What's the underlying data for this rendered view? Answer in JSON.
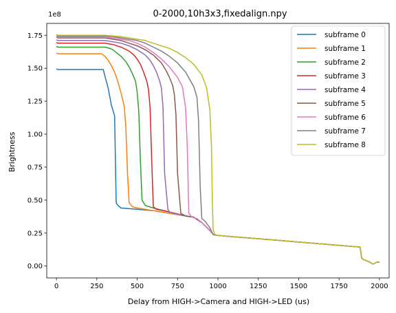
{
  "chart_data": {
    "type": "line",
    "title": "0-2000,10h3x3,fixedalign.npy",
    "xlabel": "Delay from HIGH->Camera and HIGH->LED (us)",
    "ylabel": "Brightness",
    "y_offset_label": "1e8",
    "xlim": [
      -60,
      2060
    ],
    "ylim": [
      -0.09,
      1.84
    ],
    "y_scale": 100000000.0,
    "x_ticks": [
      0,
      250,
      500,
      750,
      1000,
      1250,
      1500,
      1750,
      2000
    ],
    "x_tick_labels": [
      "0",
      "250",
      "500",
      "750",
      "1000",
      "1250",
      "1500",
      "1750",
      "2000"
    ],
    "y_ticks": [
      0,
      0.25,
      0.5,
      0.75,
      1.0,
      1.25,
      1.5,
      1.75
    ],
    "y_tick_labels": [
      "0.00",
      "0.25",
      "0.50",
      "0.75",
      "1.00",
      "1.25",
      "1.50",
      "1.75"
    ],
    "legend_position": "top-right",
    "grid": false,
    "tail": {
      "x": [
        980,
        1000,
        1100,
        1200,
        1300,
        1400,
        1500,
        1600,
        1700,
        1800,
        1880,
        1890,
        1900,
        1920,
        1940,
        1960,
        1970,
        1980,
        1990,
        2000
      ],
      "y": [
        0.236,
        0.232,
        0.222,
        0.212,
        0.202,
        0.192,
        0.182,
        0.172,
        0.162,
        0.152,
        0.144,
        0.06,
        0.05,
        0.04,
        0.03,
        0.015,
        0.02,
        0.028,
        0.03,
        0.03
      ]
    },
    "series": [
      {
        "name": "subframe 0",
        "color": "#1f77b4",
        "x": [
          0,
          10,
          50,
          100,
          150,
          200,
          250,
          290,
          300,
          320,
          340,
          360,
          370,
          380,
          400,
          500,
          600,
          700,
          800,
          850,
          900,
          950,
          970
        ],
        "y": [
          1.495,
          1.49,
          1.49,
          1.49,
          1.49,
          1.49,
          1.49,
          1.49,
          1.44,
          1.35,
          1.22,
          1.14,
          0.48,
          0.46,
          0.44,
          0.43,
          0.42,
          0.4,
          0.38,
          0.37,
          0.33,
          0.27,
          0.24
        ]
      },
      {
        "name": "subframe 1",
        "color": "#ff7f0e",
        "x": [
          0,
          10,
          50,
          100,
          150,
          200,
          250,
          280,
          300,
          320,
          340,
          360,
          380,
          400,
          420,
          430,
          440,
          450,
          470,
          500,
          600,
          700,
          800,
          850,
          900,
          950,
          970
        ],
        "y": [
          1.615,
          1.61,
          1.61,
          1.61,
          1.61,
          1.61,
          1.61,
          1.61,
          1.59,
          1.56,
          1.52,
          1.47,
          1.4,
          1.31,
          1.21,
          1.05,
          0.7,
          0.48,
          0.45,
          0.44,
          0.42,
          0.4,
          0.38,
          0.37,
          0.33,
          0.27,
          0.24
        ]
      },
      {
        "name": "subframe 2",
        "color": "#2ca02c",
        "x": [
          0,
          10,
          50,
          100,
          150,
          200,
          250,
          300,
          330,
          350,
          370,
          400,
          430,
          450,
          470,
          490,
          500,
          510,
          520,
          530,
          550,
          600,
          700,
          800,
          850,
          900,
          950,
          970
        ],
        "y": [
          1.665,
          1.66,
          1.66,
          1.66,
          1.66,
          1.66,
          1.66,
          1.66,
          1.65,
          1.64,
          1.62,
          1.59,
          1.55,
          1.51,
          1.46,
          1.4,
          1.32,
          1.17,
          0.8,
          0.5,
          0.46,
          0.44,
          0.41,
          0.38,
          0.37,
          0.33,
          0.27,
          0.24
        ]
      },
      {
        "name": "subframe 3",
        "color": "#d62728",
        "x": [
          0,
          10,
          50,
          100,
          150,
          200,
          250,
          300,
          350,
          400,
          450,
          480,
          500,
          520,
          540,
          560,
          570,
          580,
          590,
          600,
          620,
          700,
          800,
          850,
          900,
          950,
          970
        ],
        "y": [
          1.695,
          1.69,
          1.69,
          1.69,
          1.69,
          1.69,
          1.69,
          1.69,
          1.68,
          1.66,
          1.63,
          1.6,
          1.57,
          1.53,
          1.47,
          1.4,
          1.34,
          1.2,
          0.8,
          0.45,
          0.43,
          0.41,
          0.38,
          0.37,
          0.33,
          0.27,
          0.24
        ]
      },
      {
        "name": "subframe 4",
        "color": "#9467bd",
        "x": [
          0,
          10,
          50,
          100,
          150,
          200,
          250,
          300,
          350,
          400,
          450,
          500,
          550,
          580,
          600,
          620,
          640,
          650,
          660,
          670,
          690,
          700,
          800,
          850,
          900,
          950,
          970
        ],
        "y": [
          1.715,
          1.71,
          1.71,
          1.71,
          1.71,
          1.71,
          1.71,
          1.71,
          1.7,
          1.69,
          1.67,
          1.64,
          1.6,
          1.56,
          1.52,
          1.47,
          1.4,
          1.35,
          1.2,
          0.7,
          0.43,
          0.41,
          0.38,
          0.37,
          0.33,
          0.27,
          0.24
        ]
      },
      {
        "name": "subframe 5",
        "color": "#8c564b",
        "x": [
          0,
          10,
          50,
          100,
          150,
          200,
          250,
          300,
          350,
          400,
          450,
          500,
          550,
          600,
          650,
          680,
          700,
          720,
          730,
          740,
          750,
          770,
          800,
          850,
          900,
          950,
          970
        ],
        "y": [
          1.735,
          1.73,
          1.73,
          1.73,
          1.73,
          1.73,
          1.73,
          1.73,
          1.72,
          1.71,
          1.69,
          1.67,
          1.64,
          1.6,
          1.54,
          1.48,
          1.43,
          1.37,
          1.3,
          1.15,
          0.7,
          0.4,
          0.38,
          0.37,
          0.33,
          0.27,
          0.24
        ]
      },
      {
        "name": "subframe 6",
        "color": "#e377c2",
        "x": [
          0,
          10,
          50,
          100,
          150,
          200,
          250,
          300,
          350,
          400,
          450,
          500,
          550,
          600,
          650,
          700,
          750,
          780,
          800,
          810,
          820,
          840,
          870,
          900,
          950,
          970
        ],
        "y": [
          1.745,
          1.74,
          1.74,
          1.74,
          1.74,
          1.74,
          1.74,
          1.74,
          1.73,
          1.72,
          1.71,
          1.69,
          1.66,
          1.62,
          1.57,
          1.51,
          1.43,
          1.36,
          1.2,
          0.9,
          0.4,
          0.37,
          0.36,
          0.33,
          0.27,
          0.24
        ]
      },
      {
        "name": "subframe 7",
        "color": "#7f7f7f",
        "x": [
          0,
          10,
          50,
          100,
          150,
          200,
          250,
          300,
          350,
          400,
          450,
          500,
          550,
          600,
          650,
          700,
          750,
          800,
          850,
          870,
          880,
          890,
          900,
          920,
          950,
          970
        ],
        "y": [
          1.75,
          1.745,
          1.745,
          1.745,
          1.745,
          1.745,
          1.745,
          1.745,
          1.74,
          1.73,
          1.72,
          1.71,
          1.69,
          1.66,
          1.63,
          1.59,
          1.54,
          1.47,
          1.36,
          1.28,
          1.1,
          0.6,
          0.36,
          0.34,
          0.29,
          0.24
        ]
      },
      {
        "name": "subframe 8",
        "color": "#bcbd22",
        "x": [
          0,
          10,
          50,
          100,
          150,
          200,
          250,
          300,
          350,
          400,
          450,
          500,
          550,
          600,
          650,
          700,
          750,
          800,
          850,
          900,
          930,
          950,
          960,
          965,
          970,
          980
        ],
        "y": [
          1.755,
          1.75,
          1.75,
          1.75,
          1.75,
          1.75,
          1.75,
          1.75,
          1.745,
          1.74,
          1.73,
          1.72,
          1.71,
          1.69,
          1.67,
          1.65,
          1.62,
          1.58,
          1.53,
          1.45,
          1.35,
          1.18,
          0.9,
          0.5,
          0.28,
          0.24
        ]
      }
    ]
  }
}
